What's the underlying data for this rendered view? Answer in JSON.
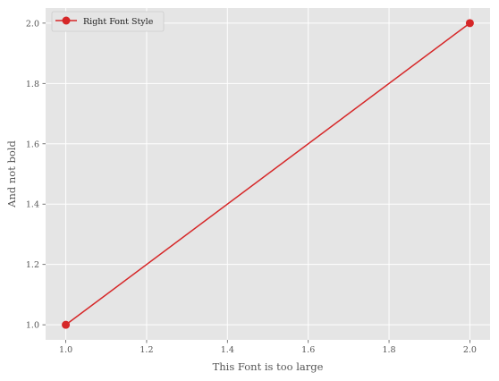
{
  "chart_data": {
    "type": "line",
    "title": "",
    "xlabel": "This Font is too large",
    "ylabel": "And not bold",
    "xlim": [
      0.95,
      2.05
    ],
    "ylim": [
      0.95,
      2.05
    ],
    "x_ticks": [
      1.0,
      1.2,
      1.4,
      1.6,
      1.8,
      2.0
    ],
    "y_ticks": [
      1.0,
      1.2,
      1.4,
      1.6,
      1.8,
      2.0
    ],
    "x_tick_labels": [
      "1.0",
      "1.2",
      "1.4",
      "1.6",
      "1.8",
      "2.0"
    ],
    "y_tick_labels": [
      "1.0",
      "1.2",
      "1.4",
      "1.6",
      "1.8",
      "2.0"
    ],
    "grid": true,
    "legend_position": "top-left",
    "series": [
      {
        "name": "Right Font Style",
        "marker": "circle",
        "color": "#d62728",
        "x": [
          1,
          2
        ],
        "y": [
          1,
          2
        ]
      }
    ]
  },
  "colors": {
    "plot_background": "#e5e5e5",
    "grid": "#ffffff",
    "tick_text": "#555555"
  }
}
